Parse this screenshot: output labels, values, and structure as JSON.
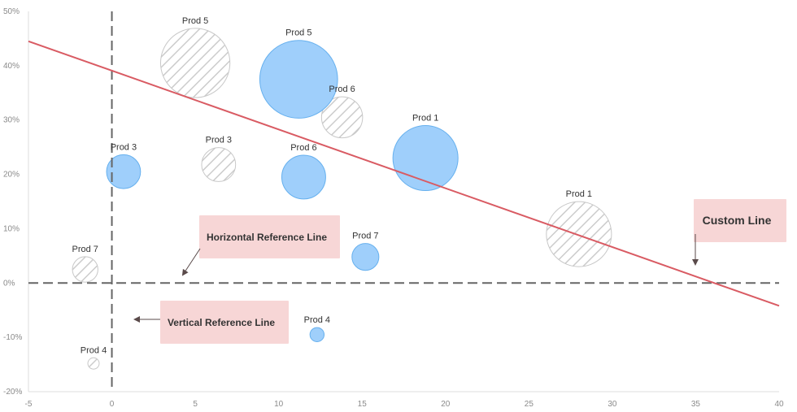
{
  "chart_data": {
    "type": "scatter",
    "subtype": "bubble",
    "xlim": [
      -5,
      40
    ],
    "ylim": [
      -20,
      50
    ],
    "x_ticks": [
      -5,
      0,
      5,
      10,
      15,
      20,
      25,
      30,
      35,
      40
    ],
    "y_ticks": [
      -20,
      -10,
      0,
      10,
      20,
      30,
      40,
      50
    ],
    "y_tick_suffix": "%",
    "grid": false,
    "series": [
      {
        "style": "solid",
        "color": "#9fcffb",
        "stroke": "#66b0ee",
        "points": [
          {
            "label": "Prod 5",
            "x": 11.2,
            "y": 37.5,
            "size": 5.5
          },
          {
            "label": "Prod 1",
            "x": 18.8,
            "y": 23.0,
            "size": 4.6
          },
          {
            "label": "Prod 3",
            "x": 0.7,
            "y": 20.5,
            "size": 2.4
          },
          {
            "label": "Prod 6",
            "x": 11.5,
            "y": 19.5,
            "size": 3.1
          },
          {
            "label": "Prod 7",
            "x": 15.2,
            "y": 4.8,
            "size": 1.9
          },
          {
            "label": "Prod 4",
            "x": 12.3,
            "y": -9.5,
            "size": 1.0
          }
        ]
      },
      {
        "style": "hatched",
        "color": "#ffffff",
        "stroke": "#c8c8c8",
        "points": [
          {
            "label": "Prod 5",
            "x": 5.0,
            "y": 40.5,
            "size": 4.9
          },
          {
            "label": "Prod 6",
            "x": 13.8,
            "y": 30.5,
            "size": 2.9
          },
          {
            "label": "Prod 3",
            "x": 6.4,
            "y": 21.8,
            "size": 2.4
          },
          {
            "label": "Prod 1",
            "x": 28.0,
            "y": 9.0,
            "size": 4.6
          },
          {
            "label": "Prod 7",
            "x": -1.6,
            "y": 2.5,
            "size": 1.8
          },
          {
            "label": "Prod 4",
            "x": -1.1,
            "y": -14.8,
            "size": 0.8
          }
        ]
      }
    ],
    "reference_lines": [
      {
        "orientation": "horizontal",
        "value": 0,
        "label": "Horizontal Reference Line"
      },
      {
        "orientation": "vertical",
        "value": 0,
        "label": "Vertical Reference Line"
      }
    ],
    "custom_line": {
      "from": [
        -5,
        44.5
      ],
      "to": [
        40,
        -4.2
      ],
      "color": "#d95b63",
      "label": "Custom Line"
    }
  }
}
